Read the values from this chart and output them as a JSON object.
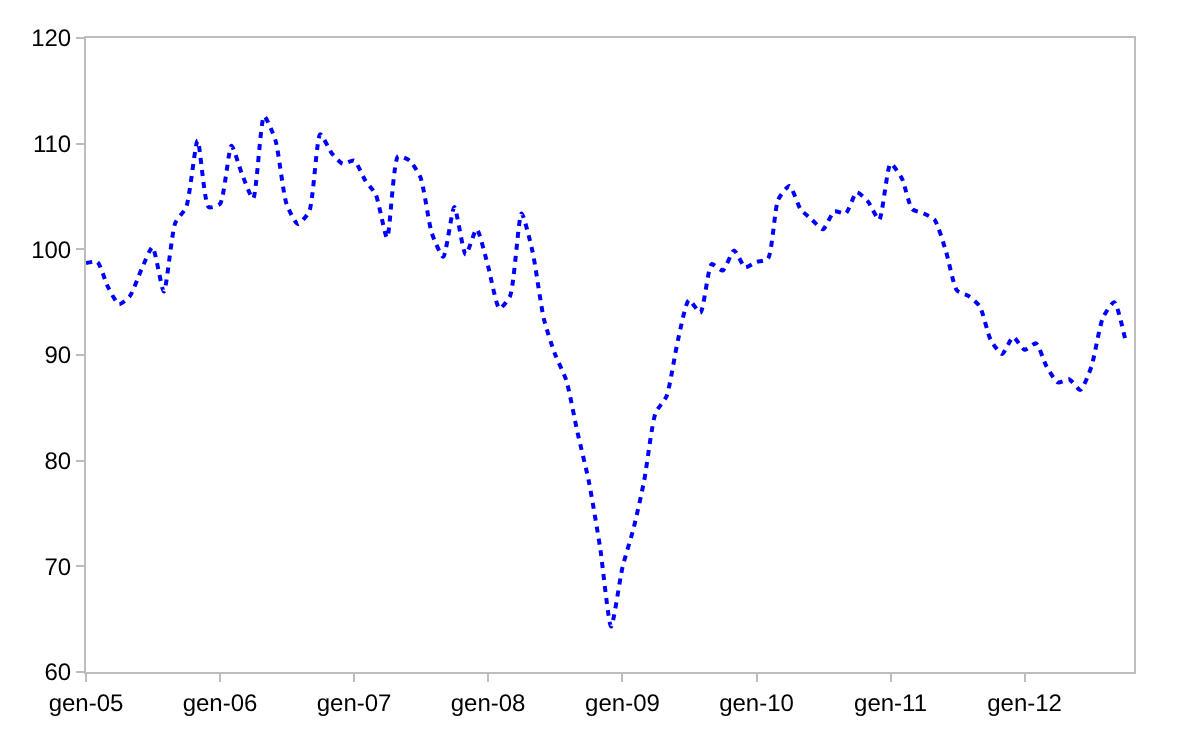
{
  "chart_data": {
    "type": "line",
    "x": [
      "2005-01",
      "2005-02",
      "2005-03",
      "2005-04",
      "2005-05",
      "2005-06",
      "2005-07",
      "2005-08",
      "2005-09",
      "2005-10",
      "2005-11",
      "2005-12",
      "2006-01",
      "2006-02",
      "2006-03",
      "2006-04",
      "2006-05",
      "2006-06",
      "2006-07",
      "2006-08",
      "2006-09",
      "2006-10",
      "2006-11",
      "2006-12",
      "2007-01",
      "2007-02",
      "2007-03",
      "2007-04",
      "2007-05",
      "2007-06",
      "2007-07",
      "2007-08",
      "2007-09",
      "2007-10",
      "2007-11",
      "2007-12",
      "2008-01",
      "2008-02",
      "2008-03",
      "2008-04",
      "2008-05",
      "2008-06",
      "2008-07",
      "2008-08",
      "2008-09",
      "2008-10",
      "2008-11",
      "2008-12",
      "2009-01",
      "2009-02",
      "2009-03",
      "2009-04",
      "2009-05",
      "2009-06",
      "2009-07",
      "2009-08",
      "2009-09",
      "2009-10",
      "2009-11",
      "2009-12",
      "2010-01",
      "2010-02",
      "2010-03",
      "2010-04",
      "2010-05",
      "2010-06",
      "2010-07",
      "2010-08",
      "2010-09",
      "2010-10",
      "2010-11",
      "2010-12",
      "2011-01",
      "2011-02",
      "2011-03",
      "2011-04",
      "2011-05",
      "2011-06",
      "2011-07",
      "2011-08",
      "2011-09",
      "2011-10",
      "2011-11",
      "2011-12",
      "2012-01",
      "2012-02",
      "2012-03",
      "2012-04",
      "2012-05",
      "2012-06",
      "2012-07",
      "2012-08",
      "2012-09",
      "2012-10"
    ],
    "series": [
      {
        "color": "#0000ff",
        "values": [
          98.7,
          98.8,
          96.5,
          94.8,
          95.6,
          98.1,
          100.2,
          96.0,
          102.5,
          104.0,
          110.3,
          104.0,
          104.3,
          109.8,
          107.2,
          104.8,
          112.6,
          110.3,
          104.3,
          102.4,
          103.6,
          110.9,
          109.1,
          108.1,
          108.4,
          106.5,
          105.2,
          101.1,
          108.8,
          108.4,
          106.8,
          101.5,
          99.3,
          104.0,
          99.5,
          101.9,
          98.4,
          94.4,
          95.6,
          103.4,
          99.8,
          93.4,
          90.1,
          87.6,
          82.6,
          78.1,
          71.8,
          64.3,
          69.9,
          73.7,
          78.1,
          84.5,
          86.1,
          91.4,
          95.2,
          94.0,
          98.6,
          98.0,
          99.9,
          98.3,
          98.8,
          99.1,
          104.7,
          106.0,
          103.8,
          102.8,
          101.9,
          103.6,
          103.4,
          105.4,
          104.5,
          102.8,
          108.1,
          106.7,
          103.8,
          103.4,
          102.8,
          99.8,
          96.1,
          95.6,
          94.6,
          91.4,
          90.1,
          91.7,
          90.5,
          91.1,
          88.9,
          87.4,
          87.7,
          86.7,
          88.9,
          93.5,
          95.0,
          91.5
        ]
      }
    ],
    "line_style": "dotted",
    "marker": "none",
    "xlim": [
      "2005-01-01",
      "2012-10-25"
    ],
    "xticks": [
      {
        "value": "2005-01",
        "label": "gen-05"
      },
      {
        "value": "2006-01",
        "label": "gen-06"
      },
      {
        "value": "2007-01",
        "label": "gen-07"
      },
      {
        "value": "2008-01",
        "label": "gen-08"
      },
      {
        "value": "2009-01",
        "label": "gen-09"
      },
      {
        "value": "2010-01",
        "label": "gen-10"
      },
      {
        "value": "2011-01",
        "label": "gen-11"
      },
      {
        "value": "2012-01",
        "label": "gen-12"
      }
    ],
    "ylim": [
      60,
      120
    ],
    "yticks": [
      60,
      70,
      80,
      90,
      100,
      110,
      120
    ]
  }
}
